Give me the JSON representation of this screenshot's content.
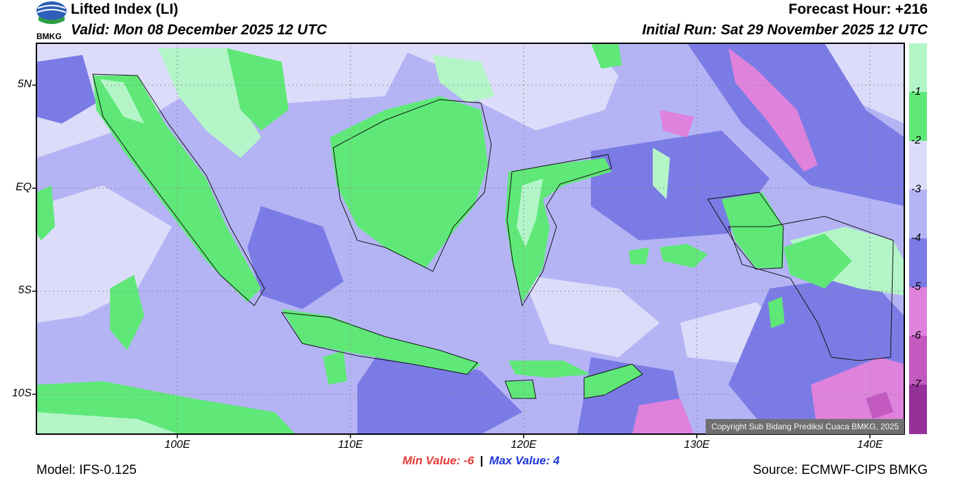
{
  "header": {
    "title": "Lifted Index (LI)",
    "valid": "Valid: Mon 08 December 2025 12 UTC",
    "forecast_hour": "Forecast Hour: +216",
    "initial_run": "Initial Run: Sat 29 November 2025 12 UTC"
  },
  "logo": {
    "text": "BMKG"
  },
  "axes": {
    "lat_labels": [
      "5N",
      "EQ",
      "5S",
      "10S"
    ],
    "lon_labels": [
      "100E",
      "110E",
      "120E",
      "130E",
      "140E"
    ]
  },
  "colorbar": {
    "labels": [
      "-1",
      "-2",
      "-3",
      "-4",
      "-5",
      "-6",
      "-7"
    ],
    "colors": [
      "#b4f5c8",
      "#5fe878",
      "#dcdcfa",
      "#b4b4f5",
      "#7b7be6",
      "#de82dc",
      "#c35ac0",
      "#94329a"
    ]
  },
  "stats": {
    "min_label": "Min Value:",
    "min_value": "-6",
    "separator": "|",
    "max_label": "Max Value:",
    "max_value": "4"
  },
  "footer": {
    "model": "Model: IFS-0.125",
    "source": "Source: ECMWF-CIPS BMKG",
    "copyright": "Copyright Sub Bidang Prediksi Cuaca BMKG, 2025"
  }
}
